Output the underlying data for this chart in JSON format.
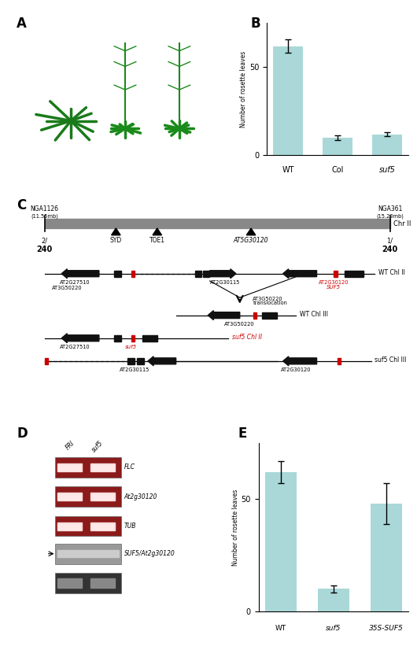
{
  "panel_B": {
    "categories": [
      "WT",
      "Col",
      "suf5"
    ],
    "values": [
      62,
      10,
      12
    ],
    "errors": [
      4,
      1.5,
      1.2
    ],
    "bar_color": "#aad8d8",
    "ylabel": "Number of rosette leaves",
    "yticks": [
      0,
      50
    ],
    "ylim": [
      0,
      75
    ]
  },
  "panel_E": {
    "categories": [
      "WT",
      "suf5",
      "35S-SUF5"
    ],
    "values": [
      62,
      10,
      48
    ],
    "errors": [
      5,
      1.5,
      9
    ],
    "bar_color": "#aad8d8",
    "ylabel": "Number of rosette leaves",
    "yticks": [
      0,
      50
    ],
    "ylim": [
      0,
      75
    ]
  },
  "background": "#ffffff",
  "red_color": "#cc0000",
  "gene_black": "#111111",
  "chr_gray": "#888888",
  "gel_red": "#8B1A1A",
  "gel_gray": "#aaaaaa",
  "gel_dark": "#333333"
}
